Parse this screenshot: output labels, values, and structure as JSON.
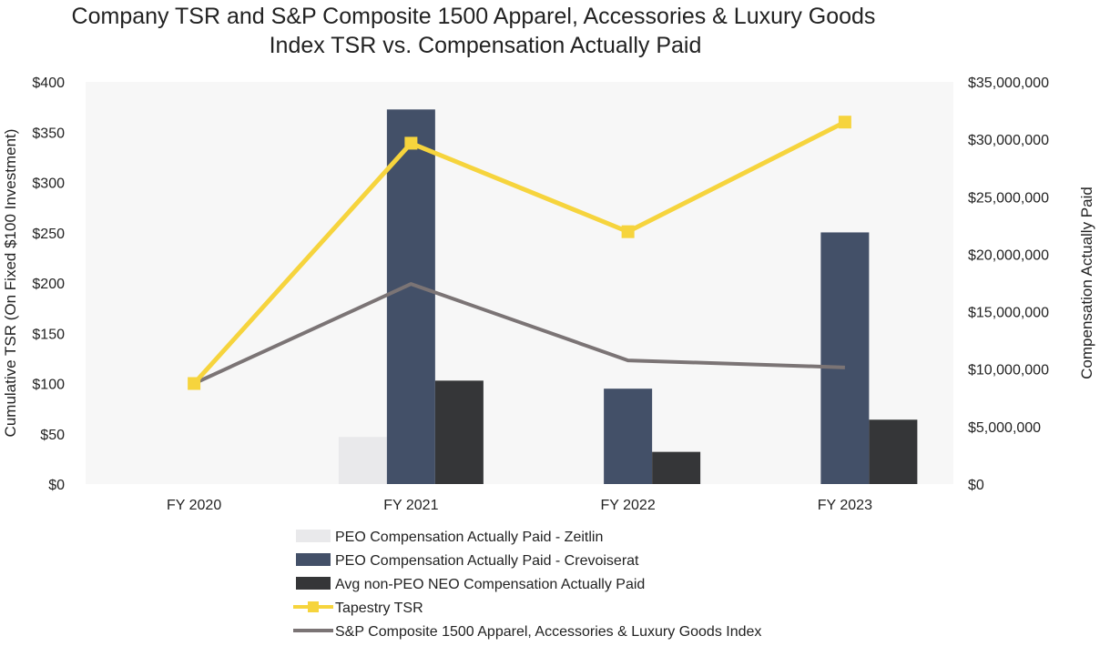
{
  "chart_data": {
    "type": "bar+line",
    "title_lines": [
      "Company TSR and S&P Composite 1500 Apparel, Accessories & Luxury Goods",
      "Index TSR vs. Compensation Actually Paid"
    ],
    "categories": [
      "FY 2020",
      "FY 2021",
      "FY 2022",
      "FY 2023"
    ],
    "left_axis": {
      "label": "Cumulative TSR (On Fixed $100 Investment)",
      "range": [
        0,
        400
      ],
      "ticks": [
        0,
        50,
        100,
        150,
        200,
        250,
        300,
        350,
        400
      ],
      "tick_labels": [
        "$0",
        "$50",
        "$100",
        "$150",
        "$200",
        "$250",
        "$300",
        "$350",
        "$400"
      ]
    },
    "right_axis": {
      "label": "Compensation Actually Paid",
      "range": [
        0,
        35000000
      ],
      "ticks": [
        0,
        5000000,
        10000000,
        15000000,
        20000000,
        25000000,
        30000000,
        35000000
      ],
      "tick_labels": [
        "$0",
        "$5,000,000",
        "$10,000,000",
        "$15,000,000",
        "$20,000,000",
        "$25,000,000",
        "$30,000,000",
        "$35,000,000"
      ]
    },
    "bar_series": [
      {
        "name": "PEO Compensation Actually Paid - Zeitlin",
        "color": "#e9e9eb",
        "values": [
          null,
          4100000,
          null,
          null
        ]
      },
      {
        "name": "PEO Compensation Actually Paid - Crevoiserat",
        "color": "#435068",
        "values": [
          null,
          32600000,
          8300000,
          21900000
        ]
      },
      {
        "name": "Avg non-PEO NEO Compensation Actually Paid",
        "color": "#353638",
        "values": [
          null,
          9000000,
          2800000,
          5600000
        ]
      }
    ],
    "line_series": [
      {
        "name": "Tapestry TSR",
        "color": "#f6d43d",
        "marker": "square",
        "values": [
          100,
          339,
          251,
          360
        ]
      },
      {
        "name": "S&P Composite 1500 Apparel, Accessories & Luxury Goods Index",
        "color": "#7b7475",
        "marker": "none",
        "values": [
          100,
          199,
          123,
          116
        ]
      }
    ],
    "legend_position": "bottom",
    "plot_background": "#f7f7f7"
  }
}
